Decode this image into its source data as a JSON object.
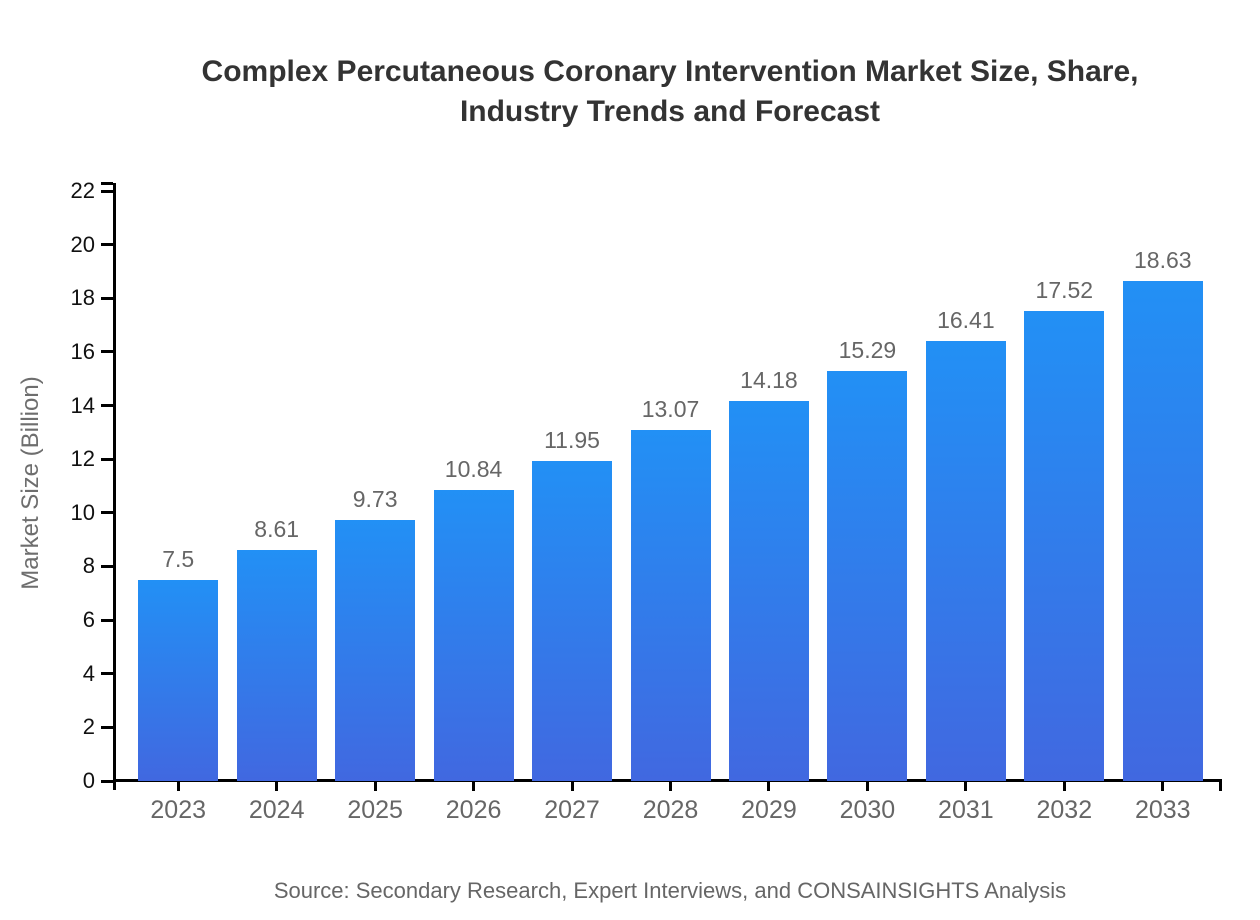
{
  "page": {
    "background": "#ffffff"
  },
  "chart_data": {
    "type": "bar",
    "title": "Complex Percutaneous Coronary Intervention Market Size, Share, Industry Trends and Forecast",
    "title_lines": [
      "Complex Percutaneous Coronary Intervention Market Size, Share,",
      "Industry Trends and Forecast"
    ],
    "categories": [
      "2023",
      "2024",
      "2025",
      "2026",
      "2027",
      "2028",
      "2029",
      "2030",
      "2031",
      "2032",
      "2033"
    ],
    "values": [
      7.5,
      8.61,
      9.73,
      10.84,
      11.95,
      13.07,
      14.18,
      15.29,
      16.41,
      17.52,
      18.63
    ],
    "value_labels": [
      "7.5",
      "8.61",
      "9.73",
      "10.84",
      "11.95",
      "13.07",
      "14.18",
      "15.29",
      "16.41",
      "17.52",
      "18.63"
    ],
    "xlabel": "",
    "ylabel": "Market Size (Billion)",
    "ylim": [
      0,
      22
    ],
    "ytick_step": 2,
    "ytick_labels": [
      "0",
      "2",
      "4",
      "6",
      "8",
      "10",
      "12",
      "14",
      "16",
      "18",
      "20",
      "22"
    ],
    "grid": false,
    "legend": "none",
    "source": "Source: Secondary Research, Expert Interviews, and CONSAINSIGHTS Analysis",
    "colors": {
      "bar_gradient_top": "#2290F5",
      "bar_gradient_bottom": "#4168E0",
      "axis": "#000000",
      "ytick_label": "#111111",
      "category_label": "#666666",
      "value_label": "#666666",
      "title": "#333333",
      "ylabel_text": "#6e6e6e",
      "source_text": "#666666"
    }
  }
}
